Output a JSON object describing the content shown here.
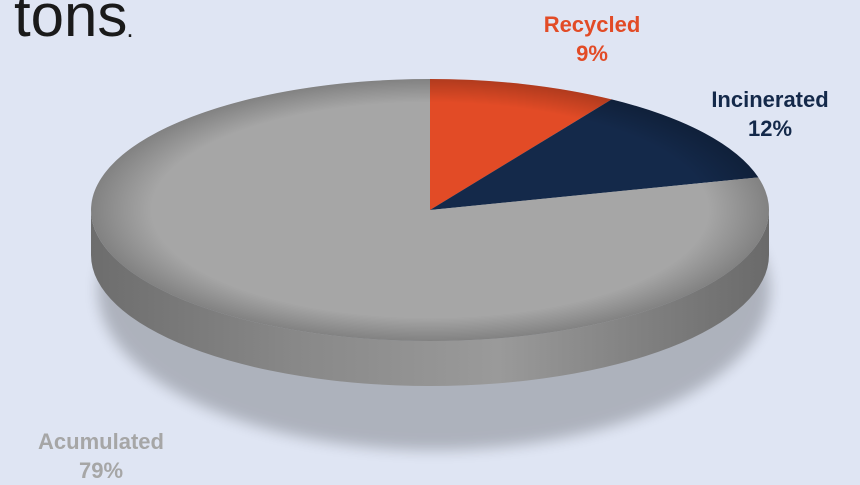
{
  "heading": {
    "text": "tons",
    "trailing_dot": "."
  },
  "chart_data": {
    "type": "pie",
    "title": "",
    "style": "3d",
    "labels": [
      "Recycled",
      "Incinerated",
      "Acumulated"
    ],
    "values": [
      9,
      12,
      79
    ],
    "value_labels": [
      "9%",
      "12%",
      "79%"
    ],
    "colors": [
      "#e24b26",
      "#14294a",
      "#a6a6a6"
    ],
    "start_angle": "12 o'clock, clockwise"
  }
}
